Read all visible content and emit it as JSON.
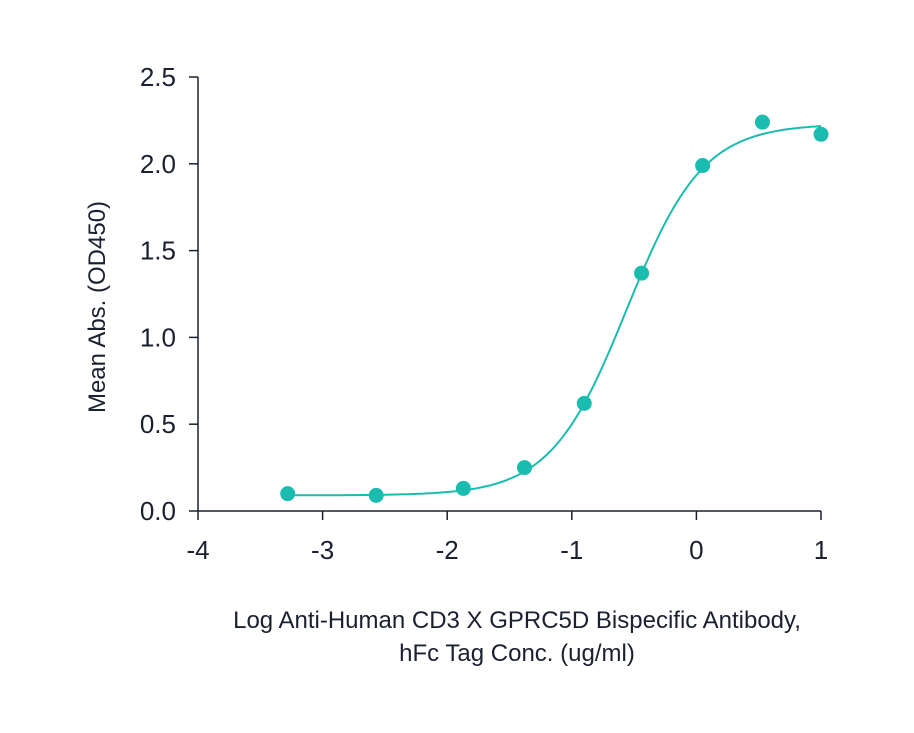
{
  "chart_data": {
    "type": "scatter",
    "title": "",
    "xlabel_lines": [
      "Log Anti-Human CD3 X GPRC5D Bispecific Antibody,",
      "hFc Tag Conc. (ug/ml)"
    ],
    "ylabel": "Mean Abs. (OD450)",
    "xlim": [
      -4,
      1
    ],
    "ylim": [
      0,
      2.5
    ],
    "xticks": [
      -4,
      -3,
      -2,
      -1,
      0,
      1
    ],
    "xtick_labels": [
      "-4",
      "-3",
      "-2",
      "-1",
      "0",
      "1"
    ],
    "yticks": [
      0,
      0.5,
      1,
      1.5,
      2,
      2.5
    ],
    "ytick_labels": [
      "0.0",
      "0.5",
      "1.0",
      "1.5",
      "2.0",
      "2.5"
    ],
    "grid": false,
    "series": [
      {
        "name": "data",
        "x": [
          -3.28,
          -2.57,
          -1.87,
          -1.38,
          -0.9,
          -0.44,
          0.05,
          0.53,
          1.0
        ],
        "y": [
          0.1,
          0.09,
          0.13,
          0.25,
          0.62,
          1.37,
          1.99,
          2.24,
          2.17
        ]
      }
    ],
    "fit": {
      "model": "4PL",
      "bottom": 0.09,
      "top": 2.23,
      "log_ec50": -0.56,
      "hill": 1.42
    },
    "color": "#1bbcb0"
  }
}
